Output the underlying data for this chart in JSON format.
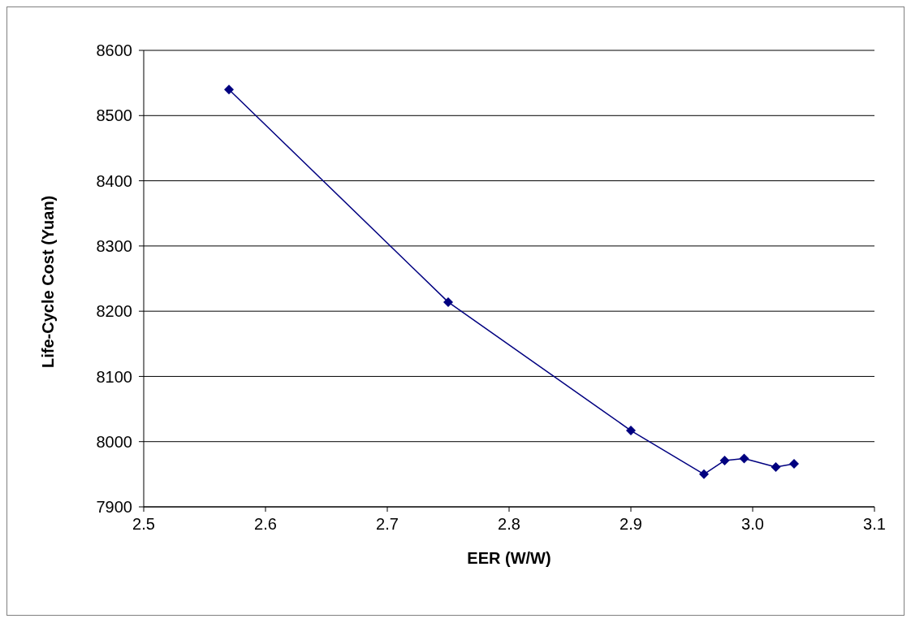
{
  "chart_data": {
    "type": "line",
    "xlabel": "EER (W/W)",
    "ylabel": "Life-Cycle Cost (Yuan)",
    "x": [
      2.57,
      2.75,
      2.9,
      2.96,
      2.977,
      2.993,
      3.019,
      3.034
    ],
    "series": [
      {
        "color": "#000080",
        "values": [
          8540,
          8214,
          8017,
          7950,
          7971,
          7974,
          7961,
          7966
        ]
      }
    ],
    "xlim": [
      2.5,
      3.1
    ],
    "xticks": [
      {
        "value": 2.5,
        "label": "2.5"
      },
      {
        "value": 2.6,
        "label": "2.6"
      },
      {
        "value": 2.7,
        "label": "2.7"
      },
      {
        "value": 2.8,
        "label": "2.8"
      },
      {
        "value": 2.9,
        "label": "2.9"
      },
      {
        "value": 3.0,
        "label": "3.0"
      },
      {
        "value": 3.1,
        "label": "3.1"
      }
    ],
    "ylim": [
      7900,
      8600
    ],
    "yticks": [
      7900,
      8000,
      8100,
      8200,
      8300,
      8400,
      8500,
      8600
    ],
    "grid": "y",
    "legend": false,
    "marker": "diamond",
    "line_style": "solid"
  }
}
